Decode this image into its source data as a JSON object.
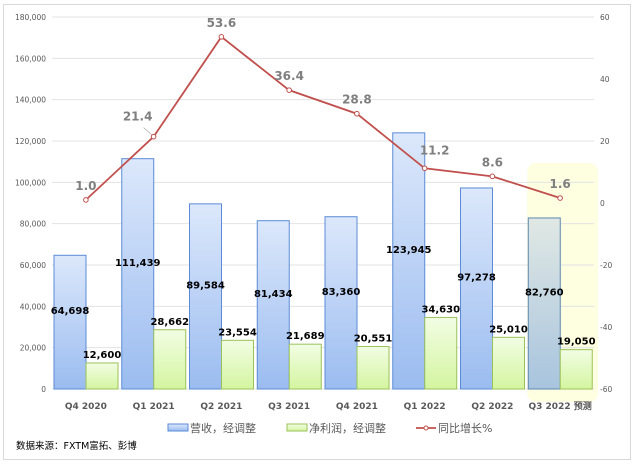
{
  "chart_data": {
    "type": "bar",
    "categories": [
      "Q4 2020",
      "Q1 2021",
      "Q2 2021",
      "Q3 2021",
      "Q4 2021",
      "Q1 2022",
      "Q2 2022",
      "Q3 2022 预测"
    ],
    "series": [
      {
        "name": "营收，经调整",
        "kind": "bar",
        "axis": "left",
        "color": "#8eb4e3",
        "values": [
          64698,
          111439,
          89584,
          81434,
          83360,
          123945,
          97278,
          82760
        ],
        "labels": [
          "64,698",
          "111,439",
          "89,584",
          "81,434",
          "83,360",
          "123,945",
          "97,278",
          "82,760"
        ]
      },
      {
        "name": "净利润，经调整",
        "kind": "bar",
        "axis": "left",
        "color": "#d7f5a8",
        "values": [
          12600,
          28662,
          23554,
          21689,
          20551,
          34630,
          25010,
          19050
        ],
        "labels": [
          "12,600",
          "28,662",
          "23,554",
          "21,689",
          "20,551",
          "34,630",
          "25,010",
          "19,050"
        ]
      },
      {
        "name": "同比增长%",
        "kind": "line",
        "axis": "right",
        "color": "#c0504d",
        "values": [
          1.0,
          21.4,
          53.6,
          36.4,
          28.8,
          11.2,
          8.6,
          1.6
        ],
        "labels": [
          "1.0",
          "21.4",
          "53.6",
          "36.4",
          "28.8",
          "11.2",
          "8.6",
          "1.6"
        ]
      }
    ],
    "left_axis": {
      "range": [
        0,
        180000
      ],
      "ticks": [
        "0",
        "20,000",
        "40,000",
        "60,000",
        "80,000",
        "100,000",
        "120,000",
        "140,000",
        "160,000",
        "180,000"
      ]
    },
    "right_axis": {
      "range": [
        -60,
        60
      ],
      "ticks": [
        "-60",
        "-40",
        "-20",
        "0",
        "20",
        "40",
        "60"
      ]
    },
    "grid": true,
    "legend": "bottom",
    "highlighted_category": "Q3 2022 预测",
    "highlight_color": "#fefee0"
  },
  "source": "数据来源：FXTM富拓、彭博"
}
